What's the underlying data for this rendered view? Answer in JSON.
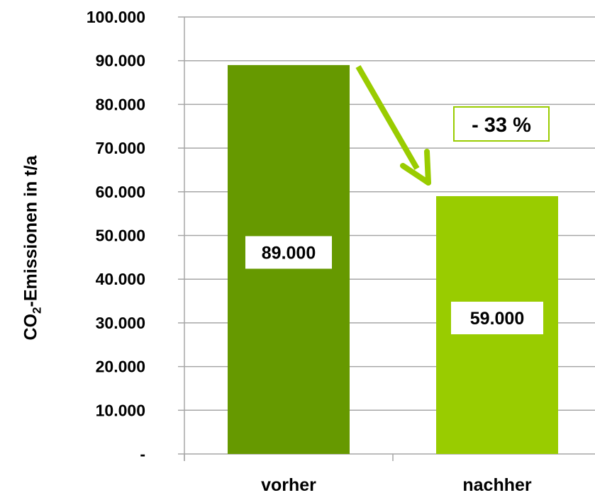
{
  "chart_data": {
    "type": "bar",
    "categories": [
      "vorher",
      "nachher"
    ],
    "values": [
      89000,
      59000
    ],
    "data_labels": [
      "89.000",
      "59.000"
    ],
    "ylabel": {
      "prefix": "CO",
      "subscript": "2",
      "suffix": "-Emissionen in t/a"
    },
    "ylim": [
      0,
      100000
    ],
    "yticks": [
      {
        "value": 0,
        "label": "-"
      },
      {
        "value": 10000,
        "label": "10.000"
      },
      {
        "value": 20000,
        "label": "20.000"
      },
      {
        "value": 30000,
        "label": "30.000"
      },
      {
        "value": 40000,
        "label": "40.000"
      },
      {
        "value": 50000,
        "label": "50.000"
      },
      {
        "value": 60000,
        "label": "60.000"
      },
      {
        "value": 70000,
        "label": "70.000"
      },
      {
        "value": 80000,
        "label": "80.000"
      },
      {
        "value": 90000,
        "label": "90.000"
      },
      {
        "value": 100000,
        "label": "100.000"
      }
    ],
    "grid": true,
    "annotation": {
      "text": "- 33 %",
      "from": "vorher",
      "to": "nachher"
    },
    "colors": {
      "vorher": "#669900",
      "nachher": "#99cc00",
      "arrow": "#99cc00",
      "grid": "#a6a6a6"
    }
  }
}
